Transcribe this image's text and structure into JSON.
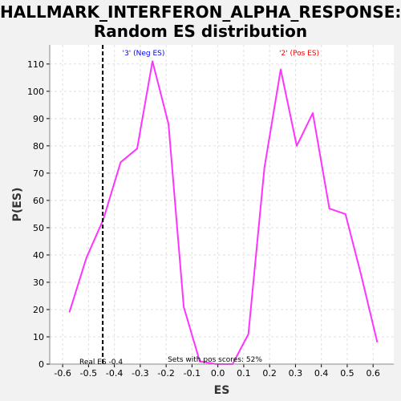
{
  "chart_data": {
    "type": "line",
    "title": "HALLMARK_INTERFERON_ALPHA_RESPONSE:",
    "subtitle": "Random ES distribution",
    "xlabel": "ES",
    "ylabel": "P(ES)",
    "xlim": [
      -0.65,
      0.68
    ],
    "ylim": [
      0,
      117
    ],
    "xticks": [
      -0.6,
      -0.5,
      -0.4,
      -0.3,
      -0.2,
      -0.1,
      0.0,
      0.1,
      0.2,
      0.3,
      0.4,
      0.5,
      0.6
    ],
    "xtick_labels": [
      "-0.6",
      "-0.5",
      "-0.4",
      "-0.3",
      "-0.2",
      "-0.1",
      "0.0",
      "0.1",
      "0.2",
      "0.3",
      "0.4",
      "0.5",
      "0.6"
    ],
    "yticks": [
      0,
      10,
      20,
      30,
      40,
      50,
      60,
      70,
      80,
      90,
      100,
      110
    ],
    "ytick_labels": [
      "0",
      "10",
      "20",
      "30",
      "40",
      "50",
      "60",
      "70",
      "80",
      "90",
      "100",
      "110"
    ],
    "grid": true,
    "series": [
      {
        "color": "#ff33ff",
        "x": [
          -0.574,
          -0.508,
          -0.443,
          -0.376,
          -0.312,
          -0.253,
          -0.191,
          -0.132,
          -0.07,
          -0.005,
          0.057,
          0.118,
          0.18,
          0.243,
          0.305,
          0.367,
          0.431,
          0.493,
          0.553,
          0.616
        ],
        "y": [
          19,
          39,
          53,
          74,
          79,
          111,
          88,
          21,
          1,
          0,
          0,
          11,
          72,
          108,
          80,
          92,
          57,
          55,
          33,
          8
        ]
      }
    ],
    "real_es": -0.445,
    "annotations": {
      "neg": "'3' (Neg ES)",
      "pos": "'2' (Pos ES)",
      "real_es": "Real ES -0.4",
      "sets_pos": "Sets with pos scores: 52%"
    },
    "colors": {
      "neg": "#0000ff",
      "pos": "#ff0000",
      "line": "#ff33ff",
      "grid": "#e0e0e0"
    }
  }
}
